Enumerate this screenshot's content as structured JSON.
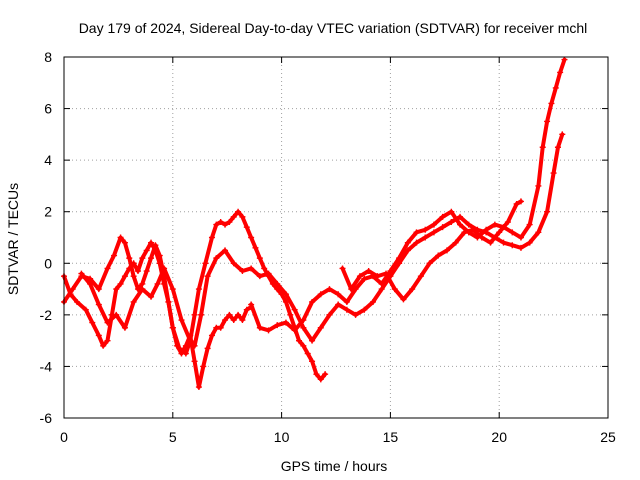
{
  "chart_data": {
    "type": "scatter",
    "title": "Day 179 of 2024, Sidereal Day-to-day VTEC variation (SDTVAR) for receiver mchl",
    "xlabel": "GPS time / hours",
    "ylabel": "SDTVAR / TECUs",
    "xlim": [
      0,
      25
    ],
    "ylim": [
      -6,
      8
    ],
    "xticks": [
      "0",
      "5",
      "10",
      "15",
      "20",
      "25"
    ],
    "yticks": [
      "-6",
      "-4",
      "-2",
      "0",
      "2",
      "4",
      "6",
      "8"
    ],
    "grid": true,
    "legend": "none",
    "marker": "+",
    "color": "#ff0000",
    "series": [
      {
        "x": [
          0,
          0.3,
          0.6,
          1.0,
          1.3,
          1.6,
          1.8,
          2.0,
          2.2,
          2.4,
          2.6,
          2.8,
          3.0,
          3.2,
          3.4,
          3.6,
          3.8,
          4.0,
          4.2,
          4.4,
          4.6,
          4.8,
          5.0,
          5.2,
          5.4,
          5.6,
          5.8,
          6.0,
          6.2,
          6.4,
          6.6,
          6.8,
          7.0,
          7.2,
          7.4,
          7.6,
          7.8,
          8.0,
          8.2,
          8.4,
          8.6
        ],
        "y": [
          -0.5,
          -1.2,
          -1.5,
          -1.8,
          -2.3,
          -2.8,
          -3.2,
          -3.0,
          -2.0,
          -1.0,
          -0.8,
          -0.5,
          -0.2,
          0.0,
          -0.3,
          0.2,
          0.5,
          0.8,
          0.5,
          0.0,
          -0.8,
          -1.5,
          -2.5,
          -3.2,
          -3.5,
          -3.2,
          -2.8,
          -3.8,
          -4.8,
          -4.0,
          -3.3,
          -2.8,
          -2.5,
          -2.5,
          -2.2,
          -2.0,
          -2.2,
          -2.0,
          -2.2,
          -1.8,
          -1.7
        ]
      },
      {
        "x": [
          0,
          0.4,
          0.8,
          1.2,
          1.6,
          2.0,
          2.3,
          2.6,
          2.8,
          3.0,
          3.2,
          3.4,
          3.6,
          3.8,
          4.0,
          4.2,
          4.4,
          4.6,
          4.8,
          5.0,
          5.3,
          5.6,
          5.8,
          6.0,
          6.2,
          6.5,
          6.8,
          7.0,
          7.2,
          7.4,
          7.6,
          7.8,
          8.0,
          8.2,
          8.4,
          8.6,
          8.8,
          9.0,
          9.2,
          9.4,
          9.6,
          9.8,
          10.0,
          10.2,
          10.4,
          10.6,
          10.8,
          11.0,
          11.2,
          11.4,
          11.6,
          11.8,
          12.0
        ],
        "y": [
          -1.5,
          -1.0,
          -0.5,
          -0.6,
          -1.0,
          -0.2,
          0.3,
          1.0,
          0.8,
          0.2,
          -0.5,
          -1.0,
          -0.8,
          -0.3,
          0.2,
          0.7,
          0.3,
          -0.5,
          -1.5,
          -2.5,
          -3.3,
          -3.5,
          -3.0,
          -2.0,
          -1.0,
          0.0,
          1.0,
          1.5,
          1.6,
          1.5,
          1.6,
          1.8,
          2.0,
          1.8,
          1.4,
          1.0,
          0.6,
          0.2,
          -0.2,
          -0.5,
          -0.8,
          -1.0,
          -1.2,
          -1.5,
          -2.0,
          -2.5,
          -3.0,
          -3.2,
          -3.5,
          -3.8,
          -4.3,
          -4.5,
          -4.3
        ]
      },
      {
        "x": [
          0.8,
          1.2,
          1.6,
          2.0,
          2.4,
          2.8,
          3.2,
          3.6,
          4.0,
          4.3,
          4.6,
          5.0,
          5.4,
          5.8,
          6.0,
          6.3,
          6.6,
          7.0,
          7.4,
          7.8,
          8.2,
          8.6,
          9.0,
          9.4,
          9.8,
          10.2,
          10.6,
          11.0,
          11.4,
          11.8,
          12.2,
          12.6,
          13.0,
          13.4,
          13.8,
          14.2,
          14.6,
          15.0,
          15.4,
          15.8,
          16.2,
          16.6,
          17.0,
          17.4,
          17.8,
          18.2,
          18.6,
          19.0,
          19.4,
          19.8,
          20.2,
          20.6,
          21.0,
          21.4,
          21.8,
          22.2,
          22.5,
          22.7,
          22.9
        ],
        "y": [
          -0.4,
          -0.8,
          -1.6,
          -2.3,
          -2.0,
          -2.5,
          -1.5,
          -1.0,
          -1.3,
          -0.8,
          -0.2,
          -1.0,
          -2.2,
          -3.0,
          -3.2,
          -2.0,
          -0.5,
          0.2,
          0.5,
          0.0,
          -0.3,
          -0.2,
          -0.5,
          -0.4,
          -0.8,
          -1.2,
          -1.8,
          -2.5,
          -3.0,
          -2.5,
          -2.0,
          -1.6,
          -1.8,
          -2.0,
          -1.8,
          -1.5,
          -1.0,
          -0.5,
          0.0,
          0.5,
          0.8,
          1.0,
          1.2,
          1.4,
          1.6,
          1.8,
          1.5,
          1.3,
          1.2,
          1.0,
          0.8,
          0.7,
          0.6,
          0.8,
          1.2,
          2.0,
          3.5,
          4.5,
          5.0
        ]
      },
      {
        "x": [
          8.6,
          9.0,
          9.4,
          9.8,
          10.2,
          10.6,
          11.0,
          11.4,
          11.8,
          12.2,
          12.6,
          13.0,
          13.4,
          13.8,
          14.2,
          14.6,
          15.0,
          15.4,
          15.8,
          16.2,
          16.6,
          17.0,
          17.4,
          17.8,
          18.2,
          18.6,
          19.0,
          19.4,
          19.8,
          20.2,
          20.6,
          21.0,
          21.4,
          21.8,
          22.0,
          22.2,
          22.4,
          22.6,
          22.8,
          23.0
        ],
        "y": [
          -1.6,
          -2.5,
          -2.6,
          -2.4,
          -2.3,
          -2.6,
          -2.2,
          -1.5,
          -1.2,
          -1.0,
          -1.2,
          -1.5,
          -1.0,
          -0.6,
          -0.5,
          -0.8,
          -0.3,
          0.2,
          0.8,
          1.2,
          1.3,
          1.5,
          1.8,
          2.0,
          1.5,
          1.2,
          1.0,
          1.3,
          1.5,
          1.4,
          1.2,
          1.0,
          1.5,
          3.0,
          4.5,
          5.5,
          6.2,
          6.8,
          7.4,
          7.9
        ]
      },
      {
        "x": [
          12.8,
          13.2,
          13.6,
          14.0,
          14.4,
          14.8,
          15.2,
          15.6,
          16.0,
          16.4,
          16.8,
          17.2,
          17.6,
          18.0,
          18.4,
          18.8,
          19.2,
          19.6,
          20.0,
          20.4,
          20.8,
          21.0
        ],
        "y": [
          -0.2,
          -1.0,
          -0.5,
          -0.3,
          -0.5,
          -0.4,
          -1.0,
          -1.4,
          -1.0,
          -0.5,
          0.0,
          0.3,
          0.5,
          0.8,
          1.2,
          1.3,
          1.0,
          0.8,
          1.2,
          1.6,
          2.3,
          2.4
        ]
      }
    ]
  }
}
